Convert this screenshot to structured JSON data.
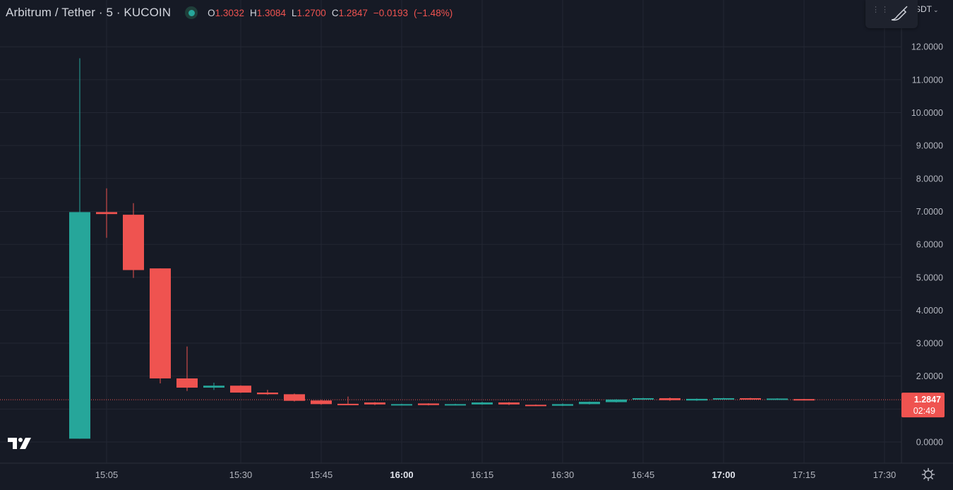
{
  "header": {
    "symbol": "Arbitrum / Tether",
    "interval": "5",
    "exchange": "KUCOIN",
    "title": "Arbitrum / Tether · 5 · KUCOIN",
    "open_key": "O",
    "open": "1.3032",
    "high_key": "H",
    "high": "1.3084",
    "low_key": "L",
    "low": "1.2700",
    "close_key": "C",
    "close": "1.2847",
    "change": "−0.0193",
    "change_pct": "(−1.48%)",
    "status_icon": "market-open-dot"
  },
  "toolbar": {
    "currency_label": "SDT",
    "icons": [
      "drag-handle-icon",
      "brush-icon",
      "chevron-down-icon"
    ]
  },
  "price_label": {
    "price": "1.2847",
    "countdown": "02:49"
  },
  "colors": {
    "up": "#26a69a",
    "down": "#ef5350",
    "background": "#161a25",
    "grid": "#232733",
    "text": "#d1d4dc"
  },
  "chart_data": {
    "type": "candlestick",
    "title": "Arbitrum / Tether · 5 · KUCOIN",
    "xlabel": "",
    "ylabel": "",
    "ylim": [
      -0.35,
      12.65
    ],
    "y_ticks": [
      "0.0000",
      "1.0000",
      "2.0000",
      "3.0000",
      "4.0000",
      "5.0000",
      "6.0000",
      "7.0000",
      "8.0000",
      "9.0000",
      "10.0000",
      "11.0000",
      "12.0000"
    ],
    "x_ticks": [
      "15:05",
      "15:30",
      "15:45",
      "16:00",
      "16:15",
      "16:30",
      "16:45",
      "17:00",
      "17:15",
      "17:30"
    ],
    "x_ticks_bold": [
      "16:00",
      "17:00"
    ],
    "bar_interval_minutes": 5,
    "last_price": 1.2847,
    "candles": [
      {
        "time": "15:00",
        "open": 0.1,
        "high": 11.65,
        "low": 0.1,
        "close": 6.98
      },
      {
        "time": "15:05",
        "open": 6.98,
        "high": 7.7,
        "low": 6.2,
        "close": 6.92
      },
      {
        "time": "15:10",
        "open": 6.9,
        "high": 7.25,
        "low": 4.98,
        "close": 5.22
      },
      {
        "time": "15:15",
        "open": 5.27,
        "high": 5.27,
        "low": 1.78,
        "close": 1.93
      },
      {
        "time": "15:20",
        "open": 1.93,
        "high": 2.9,
        "low": 1.55,
        "close": 1.65
      },
      {
        "time": "15:25",
        "open": 1.65,
        "high": 1.8,
        "low": 1.58,
        "close": 1.71
      },
      {
        "time": "15:30",
        "open": 1.71,
        "high": 1.72,
        "low": 1.49,
        "close": 1.5
      },
      {
        "time": "15:35",
        "open": 1.5,
        "high": 1.58,
        "low": 1.43,
        "close": 1.45
      },
      {
        "time": "15:40",
        "open": 1.45,
        "high": 1.47,
        "low": 1.23,
        "close": 1.25
      },
      {
        "time": "15:45",
        "open": 1.26,
        "high": 1.28,
        "low": 1.13,
        "close": 1.15
      },
      {
        "time": "15:50",
        "open": 1.16,
        "high": 1.38,
        "low": 1.13,
        "close": 1.15
      },
      {
        "time": "15:55",
        "open": 1.2,
        "high": 1.21,
        "low": 1.12,
        "close": 1.14
      },
      {
        "time": "16:00",
        "open": 1.12,
        "high": 1.16,
        "low": 1.11,
        "close": 1.15
      },
      {
        "time": "16:05",
        "open": 1.17,
        "high": 1.18,
        "low": 1.11,
        "close": 1.12
      },
      {
        "time": "16:10",
        "open": 1.12,
        "high": 1.16,
        "low": 1.11,
        "close": 1.15
      },
      {
        "time": "16:15",
        "open": 1.14,
        "high": 1.22,
        "low": 1.13,
        "close": 1.2
      },
      {
        "time": "16:20",
        "open": 1.2,
        "high": 1.21,
        "low": 1.12,
        "close": 1.14
      },
      {
        "time": "16:25",
        "open": 1.13,
        "high": 1.14,
        "low": 1.09,
        "close": 1.1
      },
      {
        "time": "16:30",
        "open": 1.1,
        "high": 1.17,
        "low": 1.09,
        "close": 1.15
      },
      {
        "time": "16:35",
        "open": 1.15,
        "high": 1.23,
        "low": 1.14,
        "close": 1.22
      },
      {
        "time": "16:40",
        "open": 1.21,
        "high": 1.3,
        "low": 1.2,
        "close": 1.29
      },
      {
        "time": "16:45",
        "open": 1.29,
        "high": 1.34,
        "low": 1.28,
        "close": 1.33
      },
      {
        "time": "16:50",
        "open": 1.33,
        "high": 1.35,
        "low": 1.25,
        "close": 1.27
      },
      {
        "time": "16:55",
        "open": 1.26,
        "high": 1.32,
        "low": 1.25,
        "close": 1.31
      },
      {
        "time": "17:00",
        "open": 1.31,
        "high": 1.34,
        "low": 1.3,
        "close": 1.33
      },
      {
        "time": "17:05",
        "open": 1.33,
        "high": 1.34,
        "low": 1.28,
        "close": 1.29
      },
      {
        "time": "17:10",
        "open": 1.29,
        "high": 1.33,
        "low": 1.28,
        "close": 1.32
      },
      {
        "time": "17:15",
        "open": 1.3032,
        "high": 1.3084,
        "low": 1.27,
        "close": 1.2847
      }
    ]
  }
}
